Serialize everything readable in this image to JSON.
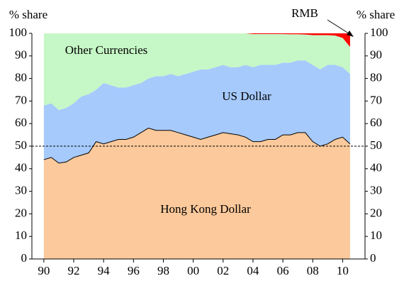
{
  "chart_data": {
    "type": "stacked-area",
    "ylabel": "% share",
    "y2label": "% share",
    "x": [
      1990,
      1990.5,
      1991,
      1991.5,
      1992,
      1992.5,
      1993,
      1993.5,
      1994,
      1994.5,
      1995,
      1995.5,
      1996,
      1996.5,
      1997,
      1997.5,
      1998,
      1998.5,
      1999,
      1999.5,
      2000,
      2000.5,
      2001,
      2001.5,
      2002,
      2002.5,
      2003,
      2003.5,
      2004,
      2004.5,
      2005,
      2005.5,
      2006,
      2006.5,
      2007,
      2007.5,
      2008,
      2008.5,
      2009,
      2009.5,
      2010,
      2010.5
    ],
    "series": [
      {
        "name": "Hong Kong Dollar",
        "color": "#fbc99b",
        "values": [
          44,
          45,
          42.5,
          43,
          45,
          46,
          47,
          52,
          51,
          52,
          53,
          53,
          54,
          56,
          58,
          57,
          57,
          57,
          56,
          55,
          54,
          53,
          54,
          55,
          56,
          55.5,
          55,
          54,
          52,
          52,
          53,
          53,
          55,
          55,
          56,
          56,
          52,
          50,
          51,
          53,
          54,
          51
        ]
      },
      {
        "name": "US Dollar",
        "color": "#a6cafc",
        "values": [
          24,
          24,
          23.5,
          24,
          24,
          26,
          26,
          23,
          27,
          25,
          23,
          23,
          23,
          22,
          22,
          24,
          24,
          25,
          25,
          27,
          29,
          31,
          30,
          30,
          30,
          29.5,
          30,
          32,
          33,
          34,
          33,
          33,
          32,
          32,
          32,
          32,
          34,
          34,
          35,
          33,
          31,
          31
        ]
      },
      {
        "name": "Other Currencies",
        "color": "#c6f7c6",
        "values": [
          32,
          31,
          34,
          33,
          31,
          28,
          27,
          25,
          22,
          23,
          24,
          24,
          23,
          22,
          20,
          19,
          19,
          18,
          19,
          18,
          17,
          16,
          16,
          15,
          14,
          15,
          15,
          14,
          14.7,
          13.7,
          13.7,
          13.7,
          12.7,
          12.6,
          11.6,
          11.5,
          13.2,
          15.2,
          13.2,
          13,
          13,
          12
        ]
      },
      {
        "name": "RMB",
        "color": "#ff0000",
        "values": [
          0,
          0,
          0,
          0,
          0,
          0,
          0,
          0,
          0,
          0,
          0,
          0,
          0,
          0,
          0,
          0,
          0,
          0,
          0,
          0,
          0,
          0,
          0,
          0,
          0,
          0,
          0,
          0,
          0.3,
          0.3,
          0.3,
          0.3,
          0.3,
          0.4,
          0.4,
          0.5,
          0.8,
          0.8,
          0.8,
          1,
          2,
          6
        ]
      }
    ],
    "reference_line": 50,
    "xlim": [
      1989.2,
      2011.5
    ],
    "xticks": [
      {
        "value": 1990,
        "label": "90"
      },
      {
        "value": 1992,
        "label": "92"
      },
      {
        "value": 1994,
        "label": "94"
      },
      {
        "value": 1996,
        "label": "96"
      },
      {
        "value": 1998,
        "label": "98"
      },
      {
        "value": 2000,
        "label": "00"
      },
      {
        "value": 2002,
        "label": "02"
      },
      {
        "value": 2004,
        "label": "04"
      },
      {
        "value": 2006,
        "label": "06"
      },
      {
        "value": 2008,
        "label": "08"
      },
      {
        "value": 2010,
        "label": "10"
      }
    ],
    "ylim": [
      0,
      100
    ],
    "yticks": [
      0,
      10,
      20,
      30,
      40,
      50,
      60,
      70,
      80,
      90,
      100
    ],
    "y2lim": [
      0,
      100
    ],
    "y2ticks": [
      0,
      10,
      20,
      30,
      40,
      50,
      60,
      70,
      80,
      90,
      100
    ]
  }
}
